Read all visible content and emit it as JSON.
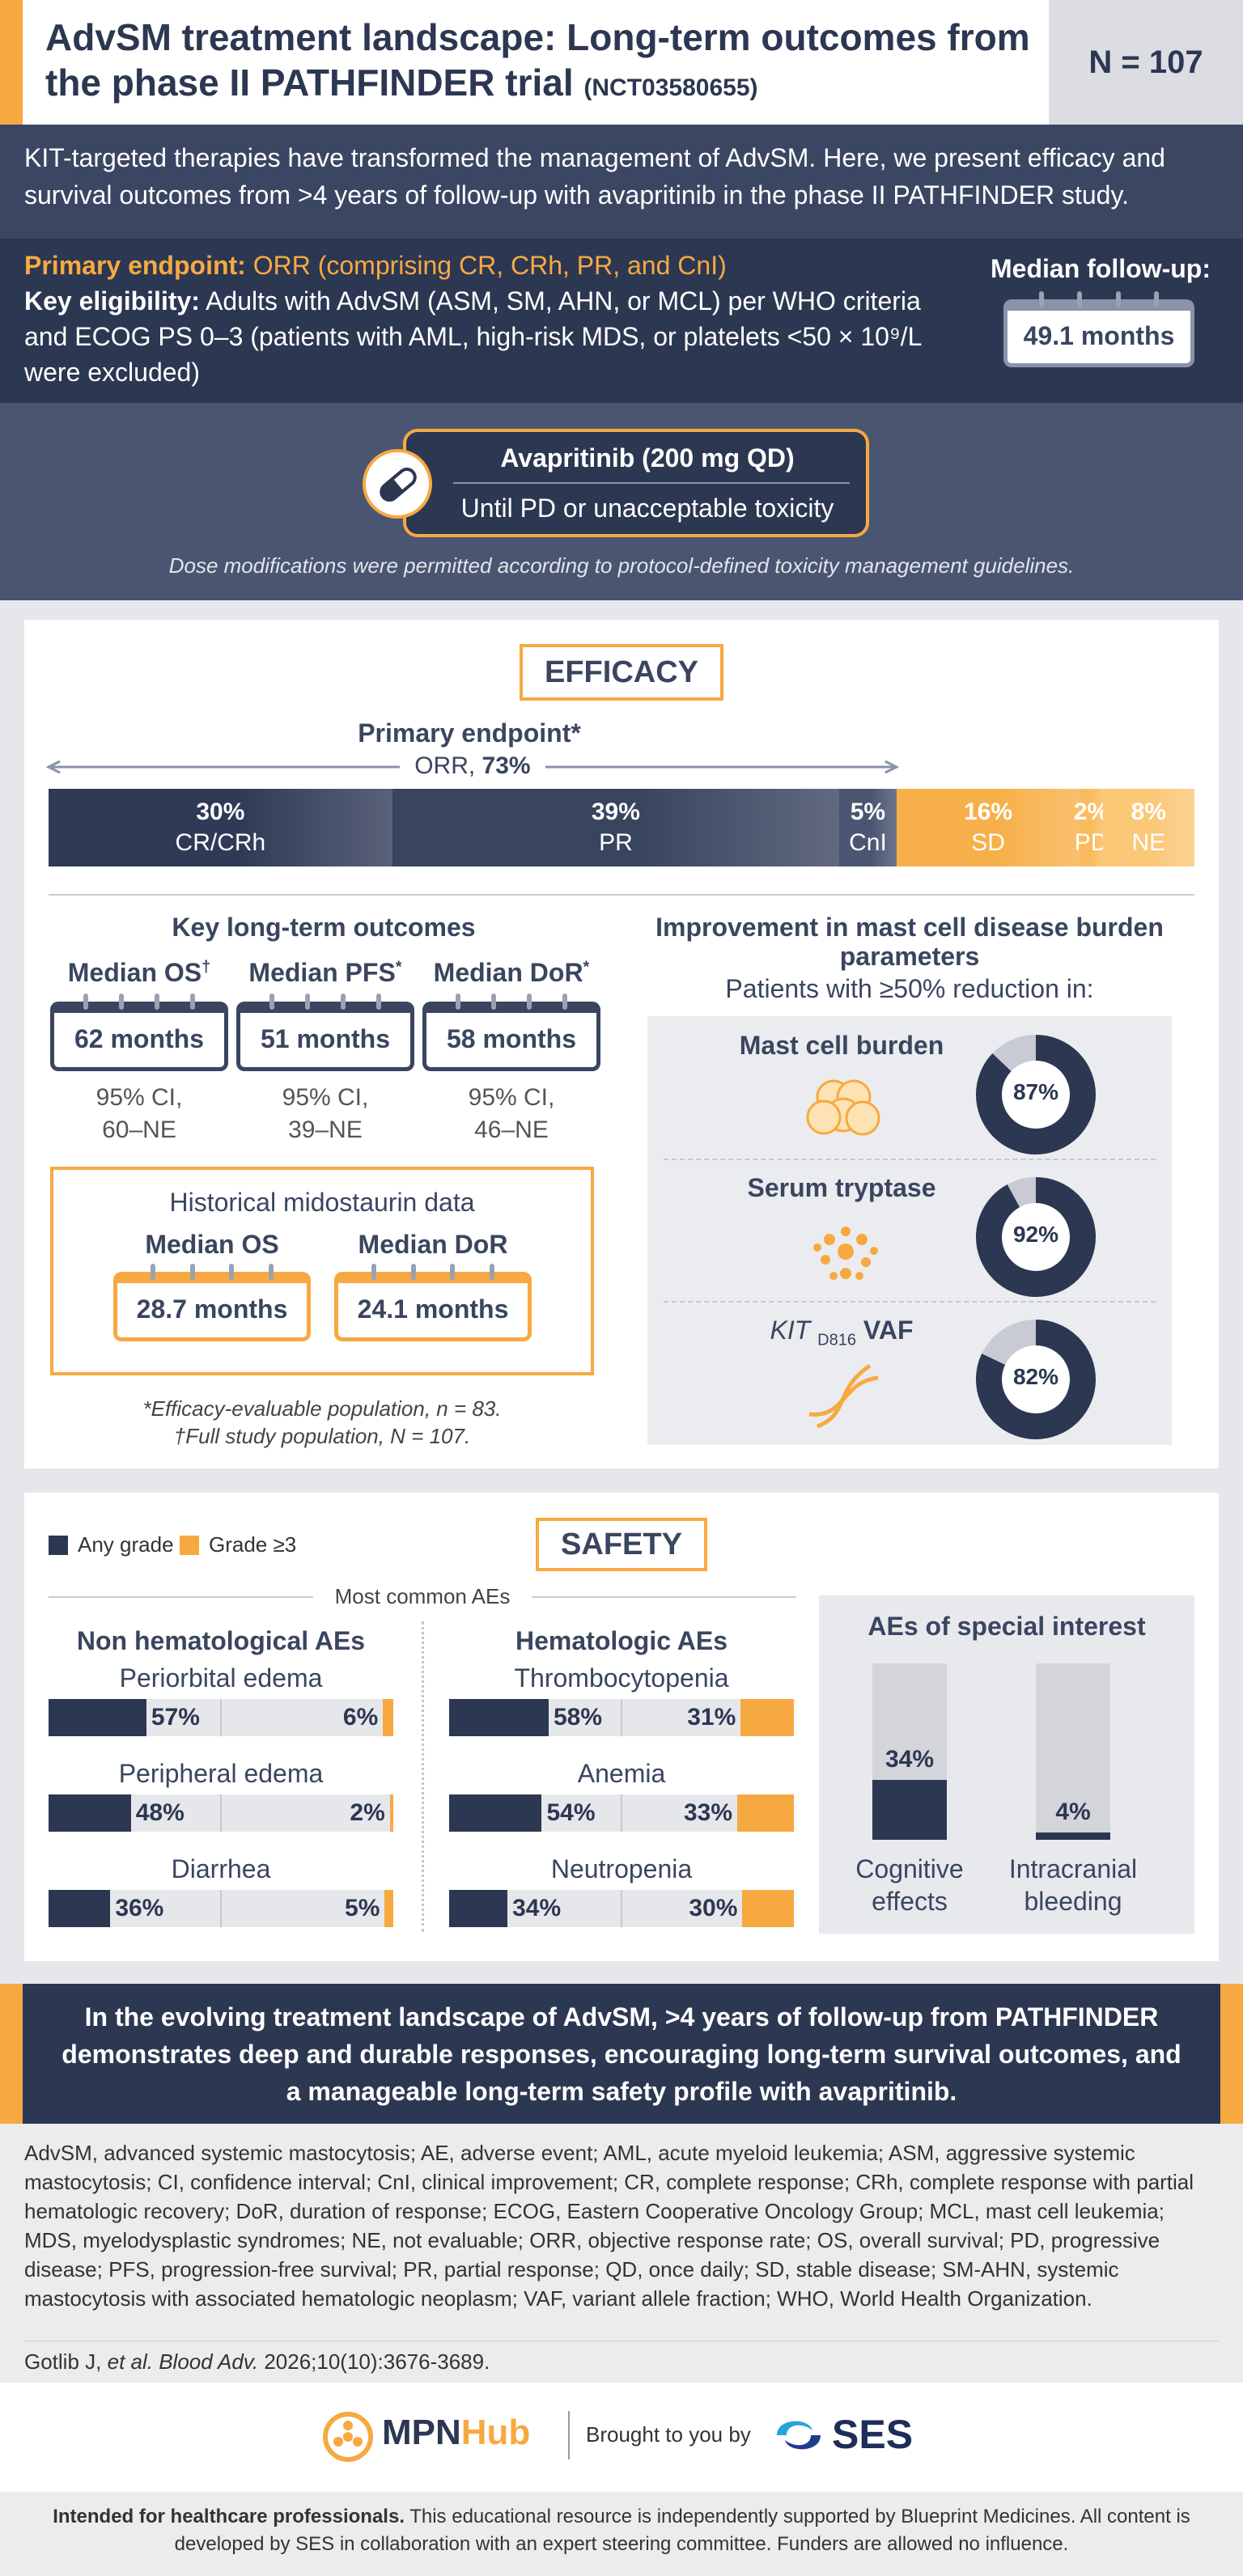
{
  "header": {
    "title": "AdvSM treatment landscape: Long-term outcomes from the phase II PATHFINDER trial",
    "trial_id": "(NCT03580655)",
    "sample_size": "N = 107"
  },
  "intro": "KIT-targeted therapies have transformed the management of AdvSM. Here, we present efficacy and survival outcomes from >4 years of follow-up with avapritinib in the phase II PATHFINDER study.",
  "design": {
    "primary_endpoint_label": "Primary endpoint:",
    "primary_endpoint": "ORR (comprising CR, CRh, PR, and CnI)",
    "eligibility_label": "Key eligibility:",
    "eligibility": "Adults with AdvSM (ASM, SM, AHN, or MCL) per WHO criteria and ECOG PS 0–3 (patients with AML, high-risk MDS, or platelets <50 × 10⁹/L were excluded)",
    "follow_up_label": "Median follow-up:",
    "follow_up": "49.1 months"
  },
  "treatment": {
    "drug": "Avapritinib (200 mg QD)",
    "duration": "Until PD or unacceptable toxicity",
    "note": "Dose modifications were permitted according to protocol-defined toxicity management guidelines."
  },
  "efficacy": {
    "title": "EFFICACY",
    "endpoint": "Primary endpoint*",
    "orr_label": "ORR,",
    "orr_value": "73%",
    "response_bar": [
      {
        "name": "CR/CRh",
        "value": 30,
        "label": "30%",
        "color": "#2f3a56"
      },
      {
        "name": "PR",
        "value": 39,
        "label": "39%",
        "color": "#39445f"
      },
      {
        "name": "CnI",
        "value": 5,
        "label": "5%",
        "color": "#4a5571"
      },
      {
        "name": "SD",
        "value": 16,
        "label": "16%",
        "color": "#f7b049"
      },
      {
        "name": "PD",
        "value": 2,
        "label": "2%",
        "color": "#f9bb5e"
      },
      {
        "name": "NE",
        "value": 8,
        "label": "8%",
        "color": "#fbc878"
      }
    ]
  },
  "outcomes": {
    "title": "Key long-term outcomes",
    "items": [
      {
        "name": "Median OS",
        "mark": "†",
        "value": "62 months",
        "ci_label": "95% CI,",
        "ci": "60–NE"
      },
      {
        "name": "Median PFS",
        "mark": "*",
        "value": "51 months",
        "ci_label": "95% CI,",
        "ci": "39–NE"
      },
      {
        "name": "Median DoR",
        "mark": "*",
        "value": "58 months",
        "ci_label": "95% CI,",
        "ci": "46–NE"
      }
    ],
    "historical": {
      "title": "Historical midostaurin data",
      "items": [
        {
          "name": "Median OS",
          "value": "28.7 months"
        },
        {
          "name": "Median DoR",
          "value": "24.1 months"
        }
      ]
    },
    "footnotes": [
      "*Efficacy-evaluable population, n = 83.",
      "†Full study population, N = 107."
    ]
  },
  "burden": {
    "title": "Improvement in mast cell disease burden parameters",
    "subtitle": "Patients with ≥50% reduction in:",
    "color": "#2c3752",
    "track_color": "#c8cbd3",
    "items": [
      {
        "name": "Mast cell burden",
        "value": 87,
        "label": "87%"
      },
      {
        "name": "Serum tryptase",
        "value": 92,
        "label": "92%"
      },
      {
        "gene": "KIT",
        "mutation": "D816",
        "name": "VAF",
        "value": 82,
        "label": "82%"
      }
    ]
  },
  "safety": {
    "title": "SAFETY",
    "legend": [
      {
        "name": "Any grade",
        "color": "#2c3752"
      },
      {
        "name": "Grade ≥3",
        "color": "#f7a941"
      }
    ],
    "common_label": "Most common AEs",
    "groups": [
      {
        "title": "Non hematological AEs",
        "rows": [
          {
            "name": "Periorbital edema",
            "values": [
              57,
              6
            ],
            "labels": [
              "57%",
              "6%"
            ]
          },
          {
            "name": "Peripheral edema",
            "values": [
              48,
              2
            ],
            "labels": [
              "48%",
              "2%"
            ]
          },
          {
            "name": "Diarrhea",
            "values": [
              36,
              5
            ],
            "labels": [
              "36%",
              "5%"
            ]
          }
        ]
      },
      {
        "title": "Hematologic AEs",
        "rows": [
          {
            "name": "Thrombocytopenia",
            "values": [
              58,
              31
            ],
            "labels": [
              "58%",
              "31%"
            ]
          },
          {
            "name": "Anemia",
            "values": [
              54,
              33
            ],
            "labels": [
              "54%",
              "33%"
            ]
          },
          {
            "name": "Neutropenia",
            "values": [
              34,
              30
            ],
            "labels": [
              "34%",
              "30%"
            ]
          }
        ]
      }
    ],
    "special": {
      "title": "AEs of special interest",
      "items": [
        {
          "name": "Cognitive effects",
          "value": 34,
          "label": "34%"
        },
        {
          "name": "Intracranial bleeding",
          "value": 4,
          "label": "4%"
        }
      ]
    }
  },
  "conclusion": "In the evolving treatment landscape of AdvSM, >4 years of follow-up from PATHFINDER demonstrates deep and durable responses, encouraging long-term survival outcomes, and a manageable long-term safety profile with avapritinib.",
  "abbreviations": "AdvSM, advanced systemic mastocytosis; AE, adverse event; AML, acute myeloid leukemia; ASM, aggressive systemic mastocytosis; CI, confidence interval; CnI, clinical improvement; CR, complete response; CRh, complete response with partial hematologic recovery; DoR, duration of response; ECOG, Eastern Cooperative Oncology Group; MCL, mast cell leukemia; MDS, myelodysplastic syndromes; NE, not evaluable; ORR, objective response rate; OS, overall survival; PD, progressive disease; PFS, progression-free survival; PR, partial response; QD, once daily; SD, stable disease; SM-AHN, systemic mastocytosis with associated hematologic neoplasm; VAF, variant allele fraction; WHO, World Health Organization.",
  "reference": {
    "authors": "Gotlib J,",
    "etal": "et al.",
    "journal": "Blood Adv.",
    "citation": "2026;10(10):3676-3689."
  },
  "logos": {
    "brand_a": "MPN",
    "brand_b": "Hub",
    "sponsor_label": "Brought to you by",
    "sponsor": "SES"
  },
  "footer": {
    "lead": "Intended for healthcare professionals.",
    "text": "This educational resource is independently supported by Blueprint Medicines. All content is developed by SES in collaboration with an expert steering committee. Funders are allowed no influence."
  }
}
